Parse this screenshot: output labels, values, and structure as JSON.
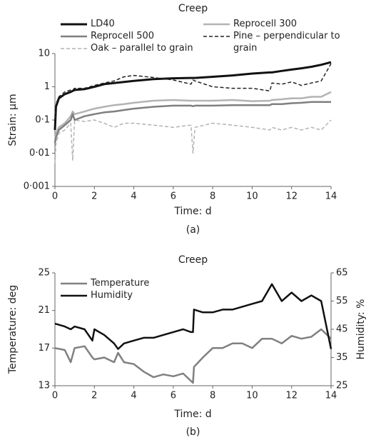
{
  "chart_data": [
    {
      "type": "line",
      "title": "Creep",
      "xlabel": "Time: d",
      "ylabel": "Strain: µm",
      "caption": "(a)",
      "log_y": true,
      "xlim": [
        0,
        14
      ],
      "xticks": [
        0,
        2,
        4,
        6,
        8,
        10,
        12,
        14
      ],
      "ylim": [
        0.001,
        10
      ],
      "yticks": [
        {
          "value": 0.001,
          "label": "0·001"
        },
        {
          "value": 0.01,
          "label": "0·01"
        },
        {
          "value": 0.1,
          "label": "0·1"
        },
        1,
        10
      ],
      "x": [
        0,
        0.05,
        0.2,
        0.5,
        0.8,
        0.9,
        1,
        1.5,
        2,
        2.5,
        3,
        3.5,
        4,
        5,
        6,
        6.9,
        7,
        7.1,
        8,
        9,
        10,
        10.9,
        11,
        11.5,
        12,
        12.5,
        13,
        13.5,
        14
      ],
      "series": [
        {
          "name": "LD40",
          "color": "#111111",
          "width": 3,
          "dashed": false,
          "values": [
            0.05,
            0.25,
            0.45,
            0.6,
            0.7,
            0.75,
            0.8,
            0.85,
            1.0,
            1.2,
            1.3,
            1.4,
            1.5,
            1.7,
            1.8,
            1.85,
            1.85,
            1.85,
            2.0,
            2.2,
            2.5,
            2.7,
            2.7,
            3.0,
            3.3,
            3.6,
            4.0,
            4.6,
            5.5
          ]
        },
        {
          "name": "Reprocell 300",
          "color": "#b3b3b3",
          "width": 2.5,
          "dashed": false,
          "values": [
            0.02,
            0.04,
            0.06,
            0.08,
            0.13,
            0.18,
            0.15,
            0.18,
            0.22,
            0.25,
            0.28,
            0.3,
            0.33,
            0.38,
            0.4,
            0.38,
            0.38,
            0.38,
            0.38,
            0.4,
            0.37,
            0.38,
            0.4,
            0.42,
            0.45,
            0.45,
            0.5,
            0.5,
            0.7
          ]
        },
        {
          "name": "Reprocell 500",
          "color": "#7f7f7f",
          "width": 2.5,
          "dashed": false,
          "values": [
            0.02,
            0.03,
            0.05,
            0.07,
            0.1,
            0.15,
            0.1,
            0.13,
            0.15,
            0.17,
            0.18,
            0.2,
            0.22,
            0.25,
            0.27,
            0.27,
            0.26,
            0.27,
            0.27,
            0.28,
            0.28,
            0.28,
            0.3,
            0.3,
            0.32,
            0.33,
            0.35,
            0.35,
            0.35
          ]
        },
        {
          "name": "Pine – perpendicular to grain",
          "color": "#222222",
          "width": 1.5,
          "dashed": true,
          "values": [
            0.1,
            0.3,
            0.5,
            0.7,
            0.8,
            0.8,
            0.9,
            0.9,
            1.1,
            1.3,
            1.5,
            2.0,
            2.2,
            1.9,
            1.6,
            1.2,
            1.6,
            1.5,
            1.0,
            0.9,
            0.9,
            0.75,
            1.3,
            1.2,
            1.4,
            1.1,
            1.3,
            1.5,
            5.0
          ]
        },
        {
          "name": "Oak – parallel to grain",
          "color": "#b3b3b3",
          "width": 1.5,
          "dashed": true,
          "values": [
            0.005,
            0.02,
            0.04,
            0.05,
            0.08,
            0.006,
            0.1,
            0.09,
            0.1,
            0.08,
            0.06,
            0.08,
            0.08,
            0.07,
            0.06,
            0.07,
            0.01,
            0.06,
            0.08,
            0.07,
            0.06,
            0.05,
            0.06,
            0.05,
            0.06,
            0.05,
            0.06,
            0.05,
            0.1
          ]
        }
      ]
    },
    {
      "type": "line",
      "title": "Creep",
      "xlabel": "Time: d",
      "ylabel": "Temperature: deg",
      "y2label": "Humidity: %",
      "caption": "(b)",
      "log_y": false,
      "xlim": [
        0,
        14
      ],
      "xticks": [
        0,
        2,
        4,
        6,
        8,
        10,
        12,
        14
      ],
      "ylim": [
        13,
        25
      ],
      "yticks": [
        13,
        17,
        21,
        25
      ],
      "y2lim": [
        25,
        65
      ],
      "y2ticks": [
        25,
        35,
        45,
        55,
        65
      ],
      "x": [
        0,
        0.5,
        0.8,
        1,
        1.5,
        1.9,
        2,
        2.5,
        3,
        3.2,
        3.5,
        4,
        4.5,
        5,
        5.5,
        6,
        6.5,
        6.9,
        7,
        7.05,
        7.5,
        8,
        8.5,
        9,
        9.5,
        10,
        10.5,
        11,
        11.5,
        12,
        12.5,
        13,
        13.5,
        14
      ],
      "series": [
        {
          "name": "Temperature",
          "color": "#808080",
          "width": 2.5,
          "dashed": false,
          "values": [
            17,
            16.8,
            15.5,
            17,
            17.2,
            16,
            15.8,
            16,
            15.5,
            16.5,
            15.5,
            15.3,
            14.5,
            13.9,
            14.2,
            14,
            14.3,
            13.5,
            13.3,
            15,
            16,
            17,
            17,
            17.5,
            17.5,
            17,
            18,
            18,
            17.5,
            18.3,
            18,
            18.2,
            19,
            18
          ]
        },
        {
          "name": "Humidity",
          "color": "#111111",
          "width": 2.5,
          "dashed": false,
          "axis": "y2",
          "values": [
            47,
            46,
            45,
            46,
            45,
            41,
            45,
            43,
            40,
            38,
            40,
            41,
            42,
            42,
            43,
            44,
            45,
            44,
            44,
            52,
            51,
            51,
            52,
            52,
            53,
            54,
            55,
            61,
            55,
            58,
            55,
            57,
            55,
            38
          ]
        }
      ]
    }
  ]
}
